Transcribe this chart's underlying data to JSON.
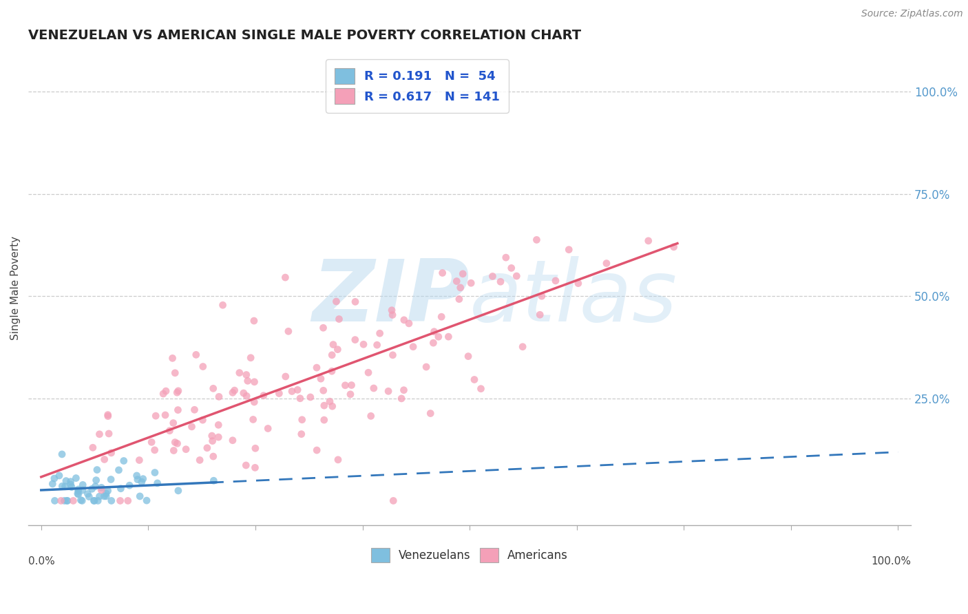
{
  "title": "VENEZUELAN VS AMERICAN SINGLE MALE POVERTY CORRELATION CHART",
  "source": "Source: ZipAtlas.com",
  "ylabel": "Single Male Poverty",
  "y_tick_values": [
    0.25,
    0.5,
    0.75,
    1.0
  ],
  "y_tick_labels": [
    "25.0%",
    "50.0%",
    "75.0%",
    "100.0%"
  ],
  "venezuelan_color": "#7fbfdf",
  "american_color": "#f4a0b8",
  "line_venezuelan_color": "#3377bb",
  "line_american_color": "#e05570",
  "background_color": "#ffffff",
  "watermark_color": "#b8d8ee",
  "venezuelan_R": 0.191,
  "venezuelan_N": 54,
  "american_R": 0.617,
  "american_N": 141,
  "right_label_color": "#5599cc"
}
